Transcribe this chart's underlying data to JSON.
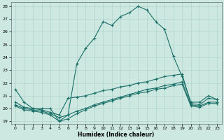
{
  "xlabel": "Humidex (Indice chaleur)",
  "background_color": "#cce8e0",
  "grid_color": "#b0d4cc",
  "line_color": "#1a7068",
  "xlim": [
    -0.5,
    23.5
  ],
  "ylim": [
    18.8,
    28.3
  ],
  "yticks": [
    19,
    20,
    21,
    22,
    23,
    24,
    25,
    26,
    27,
    28
  ],
  "xticks": [
    0,
    1,
    2,
    3,
    4,
    5,
    6,
    7,
    8,
    9,
    10,
    11,
    12,
    13,
    14,
    15,
    16,
    17,
    18,
    19,
    20,
    21,
    22,
    23
  ],
  "line1_x": [
    0,
    1,
    2,
    3,
    4,
    5,
    6,
    7,
    8,
    9,
    10,
    11,
    12,
    13,
    14,
    15,
    16,
    17,
    18,
    19,
    20,
    21,
    22,
    23
  ],
  "line1_y": [
    21.5,
    20.5,
    20.0,
    20.0,
    20.0,
    19.0,
    19.5,
    23.5,
    24.7,
    25.5,
    26.8,
    26.5,
    27.2,
    27.5,
    28.0,
    27.7,
    26.8,
    26.2,
    24.1,
    22.5,
    20.5,
    20.5,
    21.0,
    20.7
  ],
  "line2_x": [
    0,
    1,
    2,
    3,
    4,
    5,
    6,
    7,
    8,
    9,
    10,
    11,
    12,
    13,
    14,
    15,
    16,
    17,
    18,
    19,
    20,
    21,
    22,
    23
  ],
  "line2_y": [
    20.5,
    20.1,
    20.0,
    19.9,
    19.7,
    19.5,
    20.8,
    20.9,
    21.0,
    21.2,
    21.4,
    21.5,
    21.7,
    21.8,
    22.0,
    22.1,
    22.3,
    22.5,
    22.6,
    22.7,
    20.4,
    20.3,
    20.8,
    20.7
  ],
  "line3_x": [
    0,
    1,
    2,
    3,
    4,
    5,
    6,
    7,
    8,
    9,
    10,
    11,
    12,
    13,
    14,
    15,
    16,
    17,
    18,
    19,
    20,
    21,
    22,
    23
  ],
  "line3_y": [
    20.3,
    20.0,
    19.9,
    19.8,
    19.6,
    19.3,
    19.5,
    19.8,
    20.0,
    20.3,
    20.5,
    20.7,
    20.9,
    21.1,
    21.3,
    21.5,
    21.6,
    21.8,
    21.9,
    22.1,
    20.3,
    20.2,
    20.5,
    20.5
  ],
  "line4_x": [
    0,
    1,
    2,
    3,
    4,
    5,
    6,
    7,
    8,
    9,
    10,
    11,
    12,
    13,
    14,
    15,
    16,
    17,
    18,
    19,
    20,
    21,
    22,
    23
  ],
  "line4_y": [
    20.2,
    19.9,
    19.8,
    19.7,
    19.5,
    19.0,
    19.2,
    19.6,
    19.9,
    20.2,
    20.4,
    20.6,
    20.8,
    21.0,
    21.2,
    21.3,
    21.5,
    21.6,
    21.8,
    21.9,
    20.2,
    20.1,
    20.4,
    20.4
  ]
}
